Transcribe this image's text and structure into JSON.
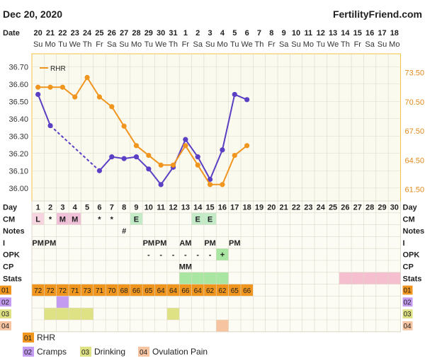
{
  "header": {
    "date": "Dec 20, 2020",
    "site": "FertilityFriend.com"
  },
  "colors": {
    "bbt": "#5b3fc4",
    "rhr": "#f0951e",
    "panel_bg": "#fbfaef",
    "grid": "#dcd9c8",
    "border": "#f0c040",
    "cm_L": "#f6d5e0",
    "cm_M": "#f0c0d8",
    "cm_E": "#c3ebc8",
    "highlight_green": "#a8e6a1",
    "highlight_pink": "#f5bfd0",
    "custom01": "#f0951e",
    "custom02": "#c39bf0",
    "custom03": "#dfe284",
    "custom04": "#f7c4a2"
  },
  "chart_data": {
    "type": "line",
    "date_labels": [
      "20",
      "21",
      "22",
      "23",
      "24",
      "25",
      "26",
      "27",
      "28",
      "29",
      "30",
      "31",
      "1",
      "2",
      "3",
      "4",
      "5",
      "6",
      "7",
      "8",
      "9",
      "10",
      "11",
      "12",
      "13",
      "14",
      "15",
      "16",
      "17",
      "18"
    ],
    "weekday_labels": [
      "Su",
      "Mo",
      "Tu",
      "We",
      "Th",
      "Fr",
      "Sa",
      "Su",
      "Mo",
      "Tu",
      "We",
      "Th",
      "Fr",
      "Sa",
      "Su",
      "Mo",
      "Tu",
      "We",
      "Th",
      "Fr",
      "Sa",
      "Su",
      "Mo",
      "Tu",
      "We",
      "Th",
      "Fr",
      "Sa",
      "Su",
      "Mo"
    ],
    "cycle_days": [
      1,
      2,
      3,
      4,
      5,
      6,
      7,
      8,
      9,
      10,
      11,
      12,
      13,
      14,
      15,
      16,
      17,
      18,
      19,
      20,
      21,
      22,
      23,
      24,
      25,
      26,
      27,
      28,
      29,
      30
    ],
    "y_left": {
      "ticks": [
        "36.70",
        "36.60",
        "36.50",
        "36.40",
        "36.30",
        "36.20",
        "36.10",
        "36.00"
      ],
      "ylim": [
        35.95,
        36.75
      ]
    },
    "y_right": {
      "ticks": [
        "73.50",
        "70.50",
        "67.50",
        "64.50",
        "61.50"
      ],
      "ylim": [
        60.75,
        75.0
      ]
    },
    "series": [
      {
        "name": "",
        "axis": "left",
        "points": [
          {
            "day": 1,
            "value": 36.54
          },
          {
            "day": 2,
            "value": 36.36
          },
          {
            "day": 6,
            "value": 36.1
          },
          {
            "day": 7,
            "value": 36.18
          },
          {
            "day": 8,
            "value": 36.17
          },
          {
            "day": 9,
            "value": 36.18
          },
          {
            "day": 10,
            "value": 36.11
          },
          {
            "day": 11,
            "value": 36.02
          },
          {
            "day": 12,
            "value": 36.12
          },
          {
            "day": 13,
            "value": 36.28
          },
          {
            "day": 14,
            "value": 36.18
          },
          {
            "day": 15,
            "value": 36.05
          },
          {
            "day": 16,
            "value": 36.22
          },
          {
            "day": 17,
            "value": 36.54
          },
          {
            "day": 18,
            "value": 36.51
          }
        ],
        "dashed_between_days": [
          2,
          6
        ]
      },
      {
        "name": "RHR",
        "axis": "right",
        "points": [
          {
            "day": 1,
            "value": 72
          },
          {
            "day": 2,
            "value": 72
          },
          {
            "day": 3,
            "value": 72
          },
          {
            "day": 4,
            "value": 71
          },
          {
            "day": 5,
            "value": 73
          },
          {
            "day": 6,
            "value": 71
          },
          {
            "day": 7,
            "value": 70
          },
          {
            "day": 8,
            "value": 68
          },
          {
            "day": 9,
            "value": 66
          },
          {
            "day": 10,
            "value": 65
          },
          {
            "day": 11,
            "value": 64
          },
          {
            "day": 12,
            "value": 64
          },
          {
            "day": 13,
            "value": 66
          },
          {
            "day": 14,
            "value": 64
          },
          {
            "day": 15,
            "value": 62
          },
          {
            "day": 16,
            "value": 62
          },
          {
            "day": 17,
            "value": 65
          },
          {
            "day": 18,
            "value": 66
          }
        ]
      }
    ],
    "legend": {
      "label": "RHR",
      "placement": "top-left"
    }
  },
  "table": {
    "day_label": "Day",
    "rows": [
      {
        "label": "CM",
        "cells": [
          {
            "day": 1,
            "text": "L",
            "bg": "cm_L"
          },
          {
            "day": 2,
            "text": "*"
          },
          {
            "day": 3,
            "text": "M",
            "bg": "cm_M"
          },
          {
            "day": 4,
            "text": "M",
            "bg": "cm_M"
          },
          {
            "day": 6,
            "text": "*"
          },
          {
            "day": 7,
            "text": "*"
          },
          {
            "day": 9,
            "text": "E",
            "bg": "cm_E"
          },
          {
            "day": 14,
            "text": "E",
            "bg": "cm_E"
          },
          {
            "day": 15,
            "text": "E",
            "bg": "cm_E"
          }
        ]
      },
      {
        "label": "Notes",
        "cells": [
          {
            "day": 8,
            "text": "#"
          }
        ]
      },
      {
        "label": "I",
        "cells": [
          {
            "day": 1,
            "text": "PM"
          },
          {
            "day": 2,
            "text": "PM"
          },
          {
            "day": 10,
            "text": "PM"
          },
          {
            "day": 11,
            "text": "PM"
          },
          {
            "day": 13,
            "text": "AM"
          },
          {
            "day": 15,
            "text": "PM"
          },
          {
            "day": 17,
            "text": "PM"
          }
        ]
      },
      {
        "label": "OPK",
        "cells": [
          {
            "day": 10,
            "text": "-"
          },
          {
            "day": 11,
            "text": "-"
          },
          {
            "day": 12,
            "text": "-"
          },
          {
            "day": 13,
            "text": "-"
          },
          {
            "day": 14,
            "text": "-"
          },
          {
            "day": 15,
            "text": "-"
          },
          {
            "day": 16,
            "text": "+",
            "bg": "highlight_green"
          }
        ]
      },
      {
        "label": "CP",
        "cells": [
          {
            "day": 13,
            "text": "MM"
          }
        ]
      },
      {
        "label": "Stats",
        "cells": [
          {
            "day": 13,
            "text": "",
            "bg": "highlight_green"
          },
          {
            "day": 14,
            "text": "",
            "bg": "highlight_green"
          },
          {
            "day": 15,
            "text": "",
            "bg": "highlight_green"
          },
          {
            "day": 16,
            "text": "",
            "bg": "highlight_green"
          },
          {
            "day": 26,
            "text": "",
            "bg": "highlight_pink"
          },
          {
            "day": 27,
            "text": "",
            "bg": "highlight_pink"
          },
          {
            "day": 28,
            "text": "",
            "bg": "highlight_pink"
          },
          {
            "day": 29,
            "text": "",
            "bg": "highlight_pink"
          },
          {
            "day": 30,
            "text": "",
            "bg": "highlight_pink"
          }
        ]
      },
      {
        "label": "01",
        "custom": true,
        "color": "custom01",
        "cells": [
          {
            "day": 1,
            "text": "72",
            "bg": "custom01"
          },
          {
            "day": 2,
            "text": "72",
            "bg": "custom01"
          },
          {
            "day": 3,
            "text": "72",
            "bg": "custom01"
          },
          {
            "day": 4,
            "text": "71",
            "bg": "custom01"
          },
          {
            "day": 5,
            "text": "73",
            "bg": "custom01"
          },
          {
            "day": 6,
            "text": "71",
            "bg": "custom01"
          },
          {
            "day": 7,
            "text": "70",
            "bg": "custom01"
          },
          {
            "day": 8,
            "text": "68",
            "bg": "custom01"
          },
          {
            "day": 9,
            "text": "66",
            "bg": "custom01"
          },
          {
            "day": 10,
            "text": "65",
            "bg": "custom01"
          },
          {
            "day": 11,
            "text": "64",
            "bg": "custom01"
          },
          {
            "day": 12,
            "text": "64",
            "bg": "custom01"
          },
          {
            "day": 13,
            "text": "66",
            "bg": "custom01"
          },
          {
            "day": 14,
            "text": "64",
            "bg": "custom01"
          },
          {
            "day": 15,
            "text": "62",
            "bg": "custom01"
          },
          {
            "day": 16,
            "text": "62",
            "bg": "custom01"
          },
          {
            "day": 17,
            "text": "65",
            "bg": "custom01"
          },
          {
            "day": 18,
            "text": "66",
            "bg": "custom01"
          }
        ]
      },
      {
        "label": "02",
        "custom": true,
        "color": "custom02",
        "cells": [
          {
            "day": 3,
            "text": "",
            "bg": "custom02"
          }
        ]
      },
      {
        "label": "03",
        "custom": true,
        "color": "custom03",
        "cells": [
          {
            "day": 2,
            "text": "",
            "bg": "custom03"
          },
          {
            "day": 3,
            "text": "",
            "bg": "custom03"
          },
          {
            "day": 4,
            "text": "",
            "bg": "custom03"
          },
          {
            "day": 5,
            "text": "",
            "bg": "custom03"
          },
          {
            "day": 12,
            "text": "",
            "bg": "custom03"
          }
        ]
      },
      {
        "label": "04",
        "custom": true,
        "color": "custom04",
        "cells": [
          {
            "day": 16,
            "text": "",
            "bg": "custom04"
          }
        ]
      }
    ],
    "right_labels": [
      "Day",
      "CM",
      "Notes",
      "I",
      "OPK",
      "CP",
      "Stats",
      "01",
      "02",
      "03",
      "04"
    ]
  },
  "legend_bottom": [
    {
      "code": "01",
      "label": "RHR",
      "color": "custom01"
    },
    {
      "code": "02",
      "label": "Cramps",
      "color": "custom02"
    },
    {
      "code": "03",
      "label": "Drinking",
      "color": "custom03"
    },
    {
      "code": "04",
      "label": "Ovulation Pain",
      "color": "custom04"
    }
  ]
}
